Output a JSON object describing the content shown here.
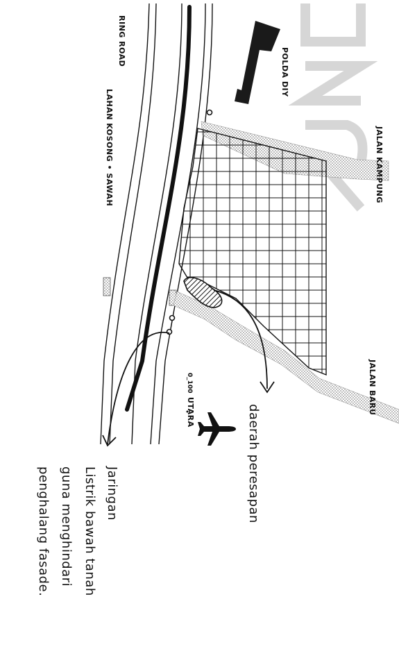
{
  "labels": {
    "ring_road": "RING ROAD",
    "lahan": "LAHAN KOSONG • SAWAH",
    "polda": "POLDA DIY",
    "jalan_kampung": "JALAN KAMPUNG",
    "jalan_baru": "JALAN BARU",
    "scale": "0_100",
    "north": "UTARA"
  },
  "notes": {
    "daerah": "daerah peresapan",
    "jaringan": [
      "Jaringan",
      "Listrik bawah tanah",
      "guna menghindari",
      "penghalang fasade."
    ]
  },
  "colors": {
    "ink": "#111111",
    "road_fill": "#b5b5b5",
    "seepage_fill": "#8a8a8a",
    "watermark": "#d2d2d2"
  },
  "icons": [
    "airplane-icon",
    "arrow-icon",
    "utility-pole-icon"
  ]
}
